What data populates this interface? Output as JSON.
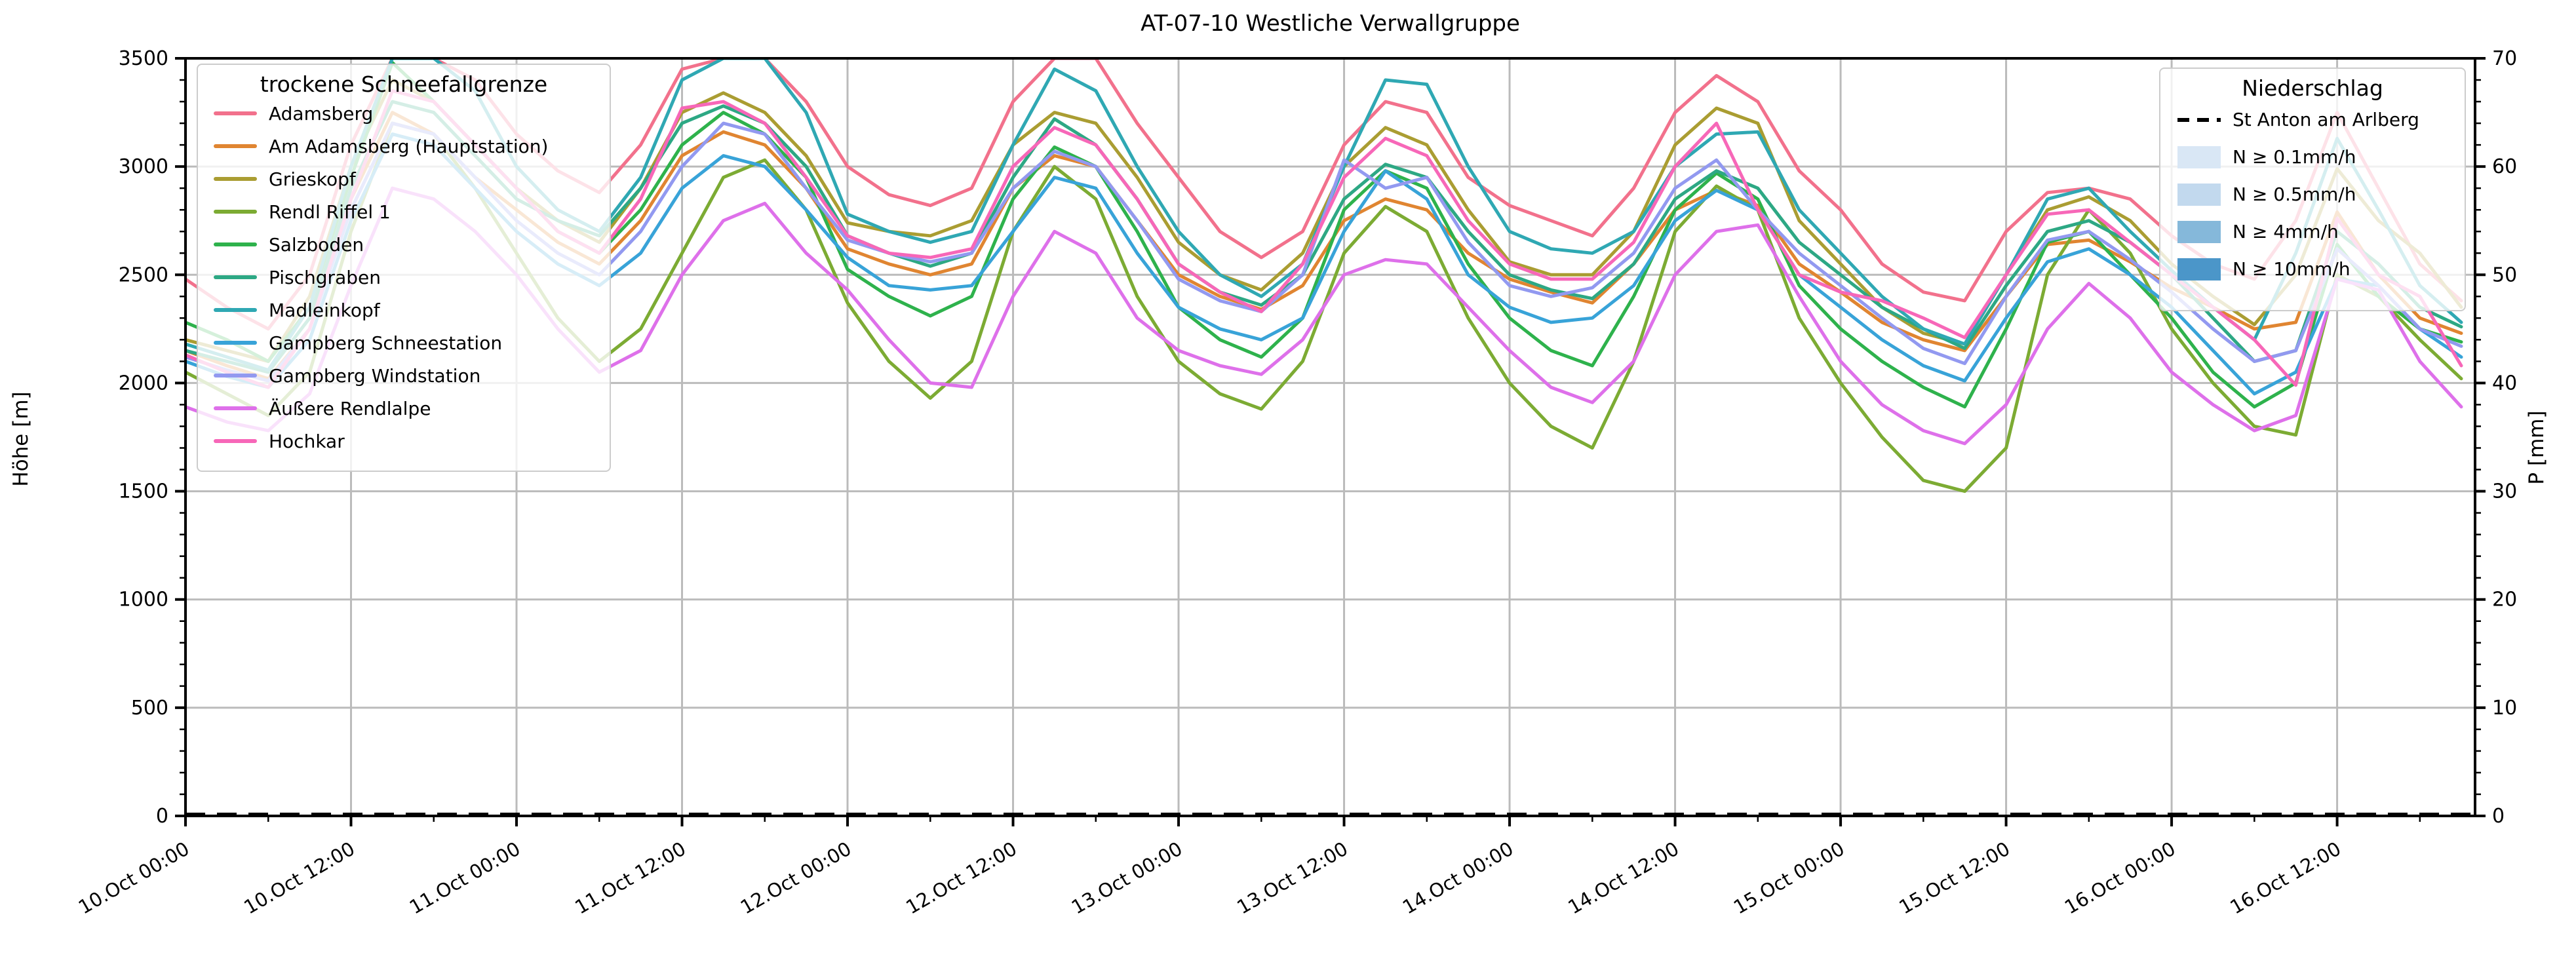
{
  "title": "AT-07-10 Westliche Verwallgruppe",
  "axes": {
    "y_left": {
      "label": "Höhe [m]",
      "min": 0,
      "max": 3500,
      "major_ticks": [
        0,
        500,
        1000,
        1500,
        2000,
        2500,
        3000,
        3500
      ],
      "minor_step": 100
    },
    "y_right": {
      "label": "P [mm]",
      "min": 0,
      "max": 70,
      "major_ticks": [
        0,
        10,
        20,
        30,
        40,
        50,
        60,
        70
      ],
      "minor_step": 2
    },
    "x": {
      "tick_labels": [
        "10.Oct 00:00",
        "10.Oct 12:00",
        "11.Oct 00:00",
        "11.Oct 12:00",
        "12.Oct 00:00",
        "12.Oct 12:00",
        "13.Oct 00:00",
        "13.Oct 12:00",
        "14.Oct 00:00",
        "14.Oct 12:00",
        "15.Oct 00:00",
        "15.Oct 12:00",
        "16.Oct 00:00",
        "16.Oct 12:00"
      ],
      "tick_hours": [
        0,
        12,
        24,
        36,
        48,
        60,
        72,
        84,
        96,
        108,
        120,
        132,
        144,
        156
      ],
      "minor_step_hours": 6,
      "max_hour": 166
    }
  },
  "legend_snowline": {
    "title": "trockene Schneefallgrenze",
    "items": [
      {
        "label": "Adamsberg",
        "color": "#f2718c"
      },
      {
        "label": "Am Adamsberg (Hauptstation)",
        "color": "#e08531"
      },
      {
        "label": "Grieskopf",
        "color": "#aa9d32"
      },
      {
        "label": "Rendl Riffel 1",
        "color": "#7cab33"
      },
      {
        "label": "Salzboden",
        "color": "#2eb24c"
      },
      {
        "label": "Pischgraben",
        "color": "#2da884"
      },
      {
        "label": "Madleinkopf",
        "color": "#2fa8b3"
      },
      {
        "label": "Gampberg Schneestation",
        "color": "#38a3d8"
      },
      {
        "label": "Gampberg Windstation",
        "color": "#9299f0"
      },
      {
        "label": "Äußere Rendlalpe",
        "color": "#de70ea"
      },
      {
        "label": "Hochkar",
        "color": "#f767b8"
      }
    ]
  },
  "legend_precip": {
    "title": "Niederschlag",
    "line_item": {
      "label": "St Anton am Arlberg",
      "color": "#000000",
      "style": "dashed"
    },
    "band_items": [
      {
        "label": "N ≥ 0.1mm/h",
        "color": "#d9e7f5"
      },
      {
        "label": "N ≥ 0.5mm/h",
        "color": "#c2d9ee"
      },
      {
        "label": "N ≥ 4mm/h",
        "color": "#85b8da"
      },
      {
        "label": "N ≥ 10mm/h",
        "color": "#4b96c9"
      }
    ]
  },
  "chart_data": {
    "type": "line",
    "title": "AT-07-10 Westliche Verwallgruppe",
    "xlabel": "",
    "ylabel_left": "Höhe [m]",
    "ylabel_right": "P [mm]",
    "ylim_left": [
      0,
      3500
    ],
    "ylim_right": [
      0,
      70
    ],
    "grid": true,
    "x_reference": "10.Oct 00:00",
    "x_step_hours": 3,
    "x_end_hour": 165,
    "note_clipping": "series clipped at 3500 m (axis top)",
    "series": [
      {
        "name": "Adamsberg",
        "color": "#f2718c",
        "values": [
          2480,
          2350,
          2250,
          2500,
          3100,
          3500,
          3500,
          3400,
          3150,
          2980,
          2880,
          3100,
          3450,
          3500,
          3500,
          3300,
          3000,
          2870,
          2820,
          2900,
          3300,
          3500,
          3500,
          3200,
          2950,
          2700,
          2580,
          2700,
          3100,
          3300,
          3250,
          2950,
          2820,
          2750,
          2680,
          2900,
          3250,
          3420,
          3300,
          2980,
          2800,
          2550,
          2420,
          2380,
          2700,
          2880,
          2900,
          2850,
          2680,
          2550,
          2480,
          2750,
          3250,
          2900,
          2550,
          2380
        ]
      },
      {
        "name": "Am Adamsberg (Hauptstation)",
        "color": "#e08531",
        "values": [
          2150,
          2080,
          2020,
          2250,
          2850,
          3250,
          3150,
          2950,
          2800,
          2650,
          2550,
          2750,
          3050,
          3160,
          3100,
          2900,
          2620,
          2550,
          2500,
          2550,
          2900,
          3050,
          3000,
          2750,
          2500,
          2400,
          2340,
          2450,
          2750,
          2850,
          2800,
          2600,
          2480,
          2420,
          2370,
          2550,
          2800,
          2890,
          2820,
          2550,
          2420,
          2280,
          2200,
          2150,
          2400,
          2640,
          2660,
          2560,
          2440,
          2350,
          2250,
          2280,
          2790,
          2500,
          2300,
          2230
        ]
      },
      {
        "name": "Grieskopf",
        "color": "#aa9d32",
        "values": [
          2200,
          2150,
          2100,
          2400,
          3000,
          3400,
          3300,
          3100,
          2900,
          2750,
          2650,
          2900,
          3250,
          3340,
          3250,
          3050,
          2740,
          2700,
          2680,
          2750,
          3100,
          3250,
          3200,
          2950,
          2650,
          2500,
          2430,
          2600,
          3000,
          3180,
          3100,
          2800,
          2560,
          2500,
          2500,
          2700,
          3100,
          3270,
          3200,
          2750,
          2550,
          2350,
          2230,
          2180,
          2500,
          2800,
          2860,
          2750,
          2550,
          2400,
          2270,
          2500,
          2990,
          2750,
          2600,
          2350
        ]
      },
      {
        "name": "Rendl Riffel 1",
        "color": "#7cab33",
        "values": [
          2050,
          1950,
          1850,
          2050,
          2700,
          3200,
          3150,
          2900,
          2600,
          2300,
          2100,
          2250,
          2600,
          2950,
          3030,
          2800,
          2370,
          2100,
          1930,
          2100,
          2700,
          3000,
          2850,
          2400,
          2100,
          1950,
          1880,
          2100,
          2600,
          2815,
          2700,
          2300,
          2000,
          1800,
          1700,
          2100,
          2700,
          2910,
          2800,
          2300,
          2000,
          1750,
          1550,
          1500,
          1700,
          2500,
          2800,
          2600,
          2250,
          2000,
          1800,
          1760,
          2500,
          2400,
          2200,
          2020
        ]
      },
      {
        "name": "Salzboden",
        "color": "#2eb24c",
        "values": [
          2280,
          2200,
          2100,
          2350,
          2950,
          3480,
          3300,
          3100,
          2900,
          2700,
          2600,
          2800,
          3100,
          3250,
          3150,
          2950,
          2525,
          2400,
          2310,
          2400,
          2850,
          3090,
          3000,
          2700,
          2350,
          2200,
          2120,
          2300,
          2800,
          2980,
          2900,
          2550,
          2300,
          2150,
          2080,
          2400,
          2800,
          2970,
          2850,
          2450,
          2250,
          2100,
          1980,
          1890,
          2250,
          2650,
          2700,
          2500,
          2300,
          2050,
          1890,
          2000,
          2640,
          2400,
          2250,
          2190
        ]
      },
      {
        "name": "Pischgraben",
        "color": "#2da884",
        "values": [
          2150,
          2100,
          2050,
          2300,
          2900,
          3300,
          3250,
          3050,
          2850,
          2750,
          2680,
          2900,
          3200,
          3280,
          3200,
          3000,
          2680,
          2600,
          2540,
          2600,
          2950,
          3220,
          3100,
          2850,
          2550,
          2420,
          2360,
          2500,
          2850,
          3010,
          2950,
          2700,
          2500,
          2430,
          2390,
          2550,
          2850,
          2980,
          2900,
          2650,
          2500,
          2350,
          2250,
          2160,
          2450,
          2700,
          2750,
          2650,
          2500,
          2300,
          2100,
          2150,
          2700,
          2550,
          2350,
          2260
        ]
      },
      {
        "name": "Madleinkopf",
        "color": "#2fa8b3",
        "values": [
          2180,
          2120,
          2060,
          2350,
          3000,
          3500,
          3500,
          3350,
          3000,
          2800,
          2700,
          2950,
          3400,
          3500,
          3500,
          3250,
          2780,
          2700,
          2650,
          2700,
          3100,
          3450,
          3350,
          3000,
          2700,
          2500,
          2400,
          2550,
          3000,
          3400,
          3380,
          3000,
          2700,
          2620,
          2600,
          2700,
          3000,
          3150,
          3160,
          2800,
          2600,
          2400,
          2250,
          2180,
          2500,
          2850,
          2900,
          2700,
          2520,
          2350,
          2200,
          2600,
          3130,
          2800,
          2450,
          2280
        ]
      },
      {
        "name": "Gampberg Schneestation",
        "color": "#38a3d8",
        "values": [
          2100,
          2030,
          1980,
          2200,
          2750,
          3150,
          3100,
          2900,
          2700,
          2550,
          2450,
          2600,
          2900,
          3050,
          3000,
          2800,
          2580,
          2450,
          2430,
          2450,
          2700,
          2950,
          2900,
          2600,
          2350,
          2250,
          2200,
          2300,
          2700,
          2980,
          2850,
          2500,
          2350,
          2280,
          2300,
          2450,
          2750,
          2890,
          2800,
          2500,
          2350,
          2200,
          2080,
          2010,
          2300,
          2560,
          2620,
          2500,
          2350,
          2150,
          1950,
          2050,
          2480,
          2450,
          2250,
          2120
        ]
      },
      {
        "name": "Gampberg Windstation",
        "color": "#9299f0",
        "values": [
          2120,
          2060,
          2010,
          2250,
          2800,
          3200,
          3150,
          2950,
          2750,
          2600,
          2500,
          2700,
          3000,
          3200,
          3150,
          2900,
          2660,
          2600,
          2560,
          2600,
          2900,
          3070,
          3000,
          2750,
          2480,
          2380,
          2330,
          2500,
          3030,
          2900,
          2950,
          2650,
          2450,
          2400,
          2440,
          2600,
          2900,
          3030,
          2800,
          2600,
          2450,
          2300,
          2160,
          2090,
          2400,
          2660,
          2700,
          2570,
          2420,
          2250,
          2100,
          2150,
          2620,
          2450,
          2250,
          2170
        ]
      },
      {
        "name": "Äußere Rendlalpe",
        "color": "#de70ea",
        "values": [
          1890,
          1820,
          1780,
          1950,
          2450,
          2900,
          2850,
          2700,
          2500,
          2250,
          2050,
          2150,
          2500,
          2750,
          2830,
          2600,
          2430,
          2200,
          2000,
          1980,
          2400,
          2700,
          2600,
          2300,
          2150,
          2080,
          2040,
          2200,
          2500,
          2570,
          2550,
          2350,
          2150,
          1980,
          1910,
          2100,
          2500,
          2700,
          2730,
          2400,
          2100,
          1900,
          1780,
          1720,
          1900,
          2250,
          2460,
          2300,
          2050,
          1900,
          1780,
          1850,
          2480,
          2430,
          2100,
          1890
        ]
      },
      {
        "name": "Hochkar",
        "color": "#f767b8",
        "values": [
          2130,
          2050,
          1980,
          2250,
          2850,
          3350,
          3300,
          3100,
          2900,
          2700,
          2600,
          2850,
          3270,
          3300,
          3200,
          2950,
          2680,
          2600,
          2580,
          2620,
          3000,
          3180,
          3100,
          2850,
          2550,
          2420,
          2330,
          2550,
          2950,
          3130,
          3050,
          2750,
          2550,
          2480,
          2480,
          2650,
          3000,
          3200,
          2800,
          2500,
          2420,
          2380,
          2300,
          2210,
          2500,
          2780,
          2800,
          2650,
          2500,
          2350,
          2200,
          1990,
          2760,
          2500,
          2400,
          2080
        ]
      }
    ],
    "precipitation": {
      "name": "St Anton am Arlberg",
      "style": "dashed-black",
      "unit": "mm",
      "constant_value_mm": 0,
      "from_hour": 0,
      "to_hour": 166
    },
    "precip_intensity_spans": []
  }
}
